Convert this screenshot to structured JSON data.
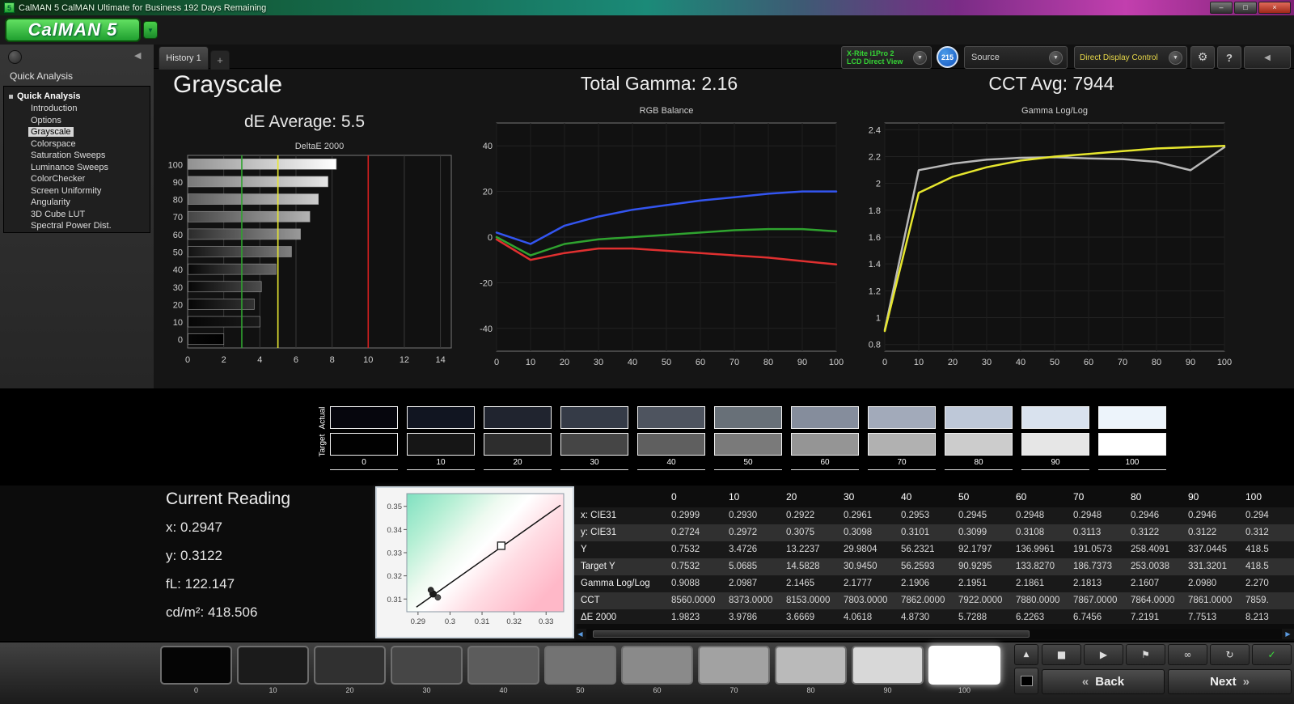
{
  "titlebar": {
    "icon": "5",
    "title": "CalMAN 5 CalMAN Ultimate for Business 192 Days Remaining"
  },
  "logo": {
    "text": "CalMAN 5"
  },
  "toolbar": {
    "history_tab": "History 1",
    "meter_line1": "X-Rite i1Pro 2",
    "meter_line2": "LCD Direct View",
    "badge_count": "215",
    "source_label": "Source",
    "display_control_label": "Direct Display Control"
  },
  "sidebar": {
    "header": "Quick Analysis",
    "root": "Quick Analysis",
    "selected": "Grayscale",
    "items": [
      "Introduction",
      "Options",
      "Grayscale",
      "Colorspace",
      "Saturation Sweeps",
      "Luminance Sweeps",
      "ColorChecker",
      "Screen Uniformity",
      "Angularity",
      "3D Cube LUT",
      "Spectral Power Dist."
    ]
  },
  "header": {
    "page_title": "Grayscale",
    "de_average": "dE Average: 5.5",
    "total_gamma": "Total Gamma: 2.16",
    "cct_avg": "CCT Avg: 7944"
  },
  "chart_data": [
    {
      "id": "deltae",
      "type": "bar",
      "orientation": "horizontal",
      "title": "DeltaE 2000",
      "categories": [
        100,
        90,
        80,
        70,
        60,
        50,
        40,
        30,
        20,
        10,
        0
      ],
      "values": [
        8.213,
        7.7513,
        7.2191,
        6.7456,
        6.2263,
        5.7288,
        4.873,
        4.0618,
        3.6669,
        3.9786,
        1.9823
      ],
      "xlim": [
        0,
        14.6
      ],
      "xticks": [
        0,
        2,
        4,
        6,
        8,
        10,
        12,
        14
      ],
      "ref_lines": [
        {
          "value": 3,
          "color": "#2fa32f"
        },
        {
          "value": 5,
          "color": "#e8e832"
        },
        {
          "value": 10,
          "color": "#d42020"
        }
      ]
    },
    {
      "id": "rgb-balance",
      "type": "line",
      "title": "RGB Balance",
      "x": [
        0,
        10,
        20,
        30,
        40,
        50,
        60,
        70,
        80,
        90,
        100
      ],
      "xticks": [
        0,
        10,
        20,
        30,
        40,
        50,
        60,
        70,
        80,
        90,
        100
      ],
      "ylim": [
        -50,
        50
      ],
      "yticks": [
        40,
        20,
        0,
        -20,
        -40
      ],
      "series": [
        {
          "name": "Red",
          "color": "#e03030",
          "values": [
            -1,
            -10,
            -7,
            -5,
            -5,
            -6,
            -7,
            -8,
            -9,
            -10.5,
            -12
          ]
        },
        {
          "name": "Green",
          "color": "#2fa32f",
          "values": [
            0,
            -8,
            -3,
            -1,
            0,
            1,
            2,
            3,
            3.5,
            3.5,
            2.5
          ]
        },
        {
          "name": "Blue",
          "color": "#3355f0",
          "values": [
            2,
            -3,
            5,
            9,
            12,
            14,
            16,
            17.5,
            19,
            20,
            20
          ]
        }
      ]
    },
    {
      "id": "gamma",
      "type": "line",
      "title": "Gamma Log/Log",
      "x": [
        0,
        10,
        20,
        30,
        40,
        50,
        60,
        70,
        80,
        90,
        100
      ],
      "xticks": [
        0,
        10,
        20,
        30,
        40,
        50,
        60,
        70,
        80,
        90,
        100
      ],
      "ylim": [
        0.75,
        2.45
      ],
      "yticks": [
        2.4,
        2.2,
        2,
        1.8,
        1.6,
        1.4,
        1.2,
        1,
        0.8
      ],
      "series": [
        {
          "name": "Measured",
          "color": "#b8b8b8",
          "values": [
            0.9088,
            2.0987,
            2.1465,
            2.1777,
            2.1906,
            2.1951,
            2.1861,
            2.1813,
            2.1607,
            2.098,
            2.27
          ]
        },
        {
          "name": "Target",
          "color": "#e6e62e",
          "values": [
            0.9,
            1.93,
            2.05,
            2.12,
            2.17,
            2.2,
            2.22,
            2.24,
            2.26,
            2.27,
            2.28
          ]
        }
      ]
    },
    {
      "id": "cie",
      "type": "scatter",
      "title": "CIE Chromaticity",
      "xlim": [
        0.2865,
        0.3355
      ],
      "ylim": [
        0.3045,
        0.3555
      ],
      "xticks": [
        0.29,
        0.3,
        0.31,
        0.32,
        0.33
      ],
      "xtick_labels": [
        "0.29",
        "0.3",
        "0.31",
        "0.32",
        "0.33"
      ],
      "yticks": [
        0.31,
        0.32,
        0.33,
        0.34,
        0.35
      ],
      "ytick_labels": [
        "0.31",
        "0.32",
        "0.33",
        "0.34",
        "0.35"
      ],
      "locus_line": {
        "from": [
          0.2895,
          0.3065
        ],
        "to": [
          0.3345,
          0.3505
        ]
      },
      "target_point": [
        0.316,
        0.333
      ],
      "points": [
        [
          0.2947,
          0.3122
        ],
        [
          0.2962,
          0.3107
        ],
        [
          0.294,
          0.3139
        ]
      ]
    }
  ],
  "swatch_strip": {
    "actual_label": "Actual",
    "target_label": "Target",
    "levels": [
      "0",
      "10",
      "20",
      "30",
      "40",
      "50",
      "60",
      "70",
      "80",
      "90",
      "100"
    ],
    "actual_colors": [
      "#06060d",
      "#111521",
      "#20242f",
      "#353b47",
      "#4e545f",
      "#687078",
      "#858d9c",
      "#a2aaba",
      "#bec8d8",
      "#d9e2ee",
      "#edf4fb"
    ],
    "target_colors": [
      "#010101",
      "#161616",
      "#2d2d2d",
      "#454545",
      "#5f5f5f",
      "#7a7a7a",
      "#959595",
      "#b1b1b1",
      "#cccccc",
      "#e6e6e6",
      "#ffffff"
    ]
  },
  "current_reading": {
    "title": "Current Reading",
    "x": "x: 0.2947",
    "y": "y: 0.3122",
    "fl": "fL: 122.147",
    "cd": "cd/m²: 418.506"
  },
  "table": {
    "columns": [
      "",
      "0",
      "10",
      "20",
      "30",
      "40",
      "50",
      "60",
      "70",
      "80",
      "90",
      "100"
    ],
    "rows": [
      {
        "label": "x: CIE31",
        "values": [
          "0.2999",
          "0.2930",
          "0.2922",
          "0.2961",
          "0.2953",
          "0.2945",
          "0.2948",
          "0.2948",
          "0.2946",
          "0.2946",
          "0.294"
        ]
      },
      {
        "label": "y: CIE31",
        "values": [
          "0.2724",
          "0.2972",
          "0.3075",
          "0.3098",
          "0.3101",
          "0.3099",
          "0.3108",
          "0.3113",
          "0.3122",
          "0.3122",
          "0.312"
        ]
      },
      {
        "label": "Y",
        "values": [
          "0.7532",
          "3.4726",
          "13.2237",
          "29.9804",
          "56.2321",
          "92.1797",
          "136.9961",
          "191.0573",
          "258.4091",
          "337.0445",
          "418.5"
        ]
      },
      {
        "label": "Target Y",
        "values": [
          "0.7532",
          "5.0685",
          "14.5828",
          "30.9450",
          "56.2593",
          "90.9295",
          "133.8270",
          "186.7373",
          "253.0038",
          "331.3201",
          "418.5"
        ]
      },
      {
        "label": "Gamma Log/Log",
        "values": [
          "0.9088",
          "2.0987",
          "2.1465",
          "2.1777",
          "2.1906",
          "2.1951",
          "2.1861",
          "2.1813",
          "2.1607",
          "2.0980",
          "2.270"
        ]
      },
      {
        "label": "CCT",
        "values": [
          "8560.0000",
          "8373.0000",
          "8153.0000",
          "7803.0000",
          "7862.0000",
          "7922.0000",
          "7880.0000",
          "7867.0000",
          "7864.0000",
          "7861.0000",
          "7859."
        ]
      },
      {
        "label": "ΔE 2000",
        "values": [
          "1.9823",
          "3.9786",
          "3.6669",
          "4.0618",
          "4.8730",
          "5.7288",
          "6.2263",
          "6.7456",
          "7.2191",
          "7.7513",
          "8.213"
        ]
      }
    ]
  },
  "bottom_bar": {
    "levels": [
      "0",
      "10",
      "20",
      "30",
      "40",
      "50",
      "60",
      "70",
      "80",
      "90",
      "100"
    ],
    "colors": [
      "#050505",
      "#1b1b1b",
      "#303030",
      "#464646",
      "#5c5c5c",
      "#737373",
      "#8a8a8a",
      "#a2a2a2",
      "#bababa",
      "#d8d8d8",
      "#ffffff"
    ],
    "selected_level": "100",
    "back_label": "Back",
    "next_label": "Next"
  },
  "icons": {
    "dropdown": "▼",
    "gear": "⚙",
    "help": "?",
    "collapse_left": "◀",
    "sidebar_collapse": "◀",
    "minimize": "–",
    "restore": "□",
    "close": "×",
    "plus": "+",
    "up": "▲",
    "stop": "■",
    "play": "▶",
    "flag": "⚑",
    "infinity": "∞",
    "loop": "↻",
    "check": "✓",
    "back_chev": "«",
    "next_chev": "»",
    "scroll_left": "◀",
    "scroll_right": "▶"
  }
}
